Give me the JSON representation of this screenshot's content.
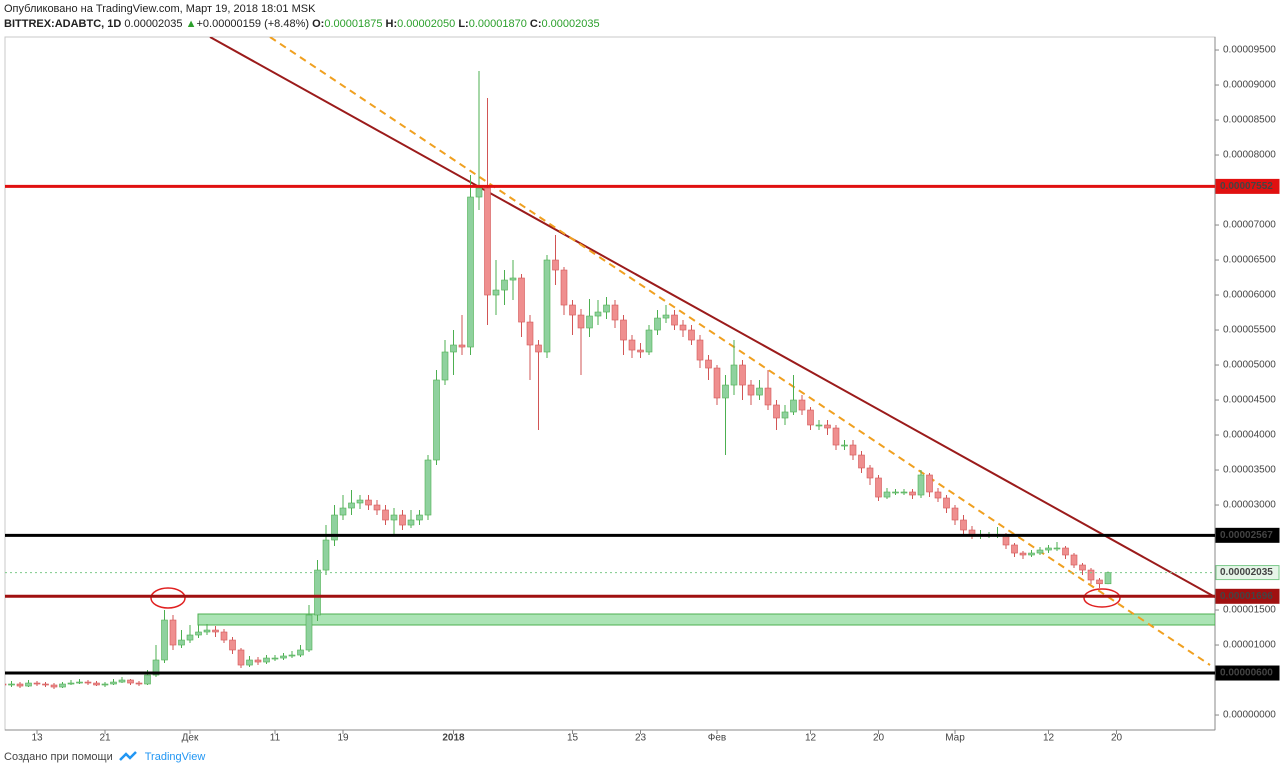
{
  "header": {
    "published": "Опубликовано на TradingView.com, Март 19, 2018 18:01 MSK",
    "symbol": "BITTREX:ADABTC, 1D",
    "last": "0.00002035",
    "arrow": "▲",
    "change": "+0.00000159 (+8.48%)",
    "o_label": "O:",
    "o": "0.00001875",
    "h_label": "H:",
    "h": "0.00002050",
    "l_label": "L:",
    "l": "0.00001870",
    "c_label": "C:",
    "c": "0.00002035"
  },
  "footer": {
    "made_with": "Создано при помощи",
    "brand": "TradingView"
  },
  "chart_data": {
    "type": "candlestick",
    "categories": [
      null,
      null,
      null,
      null,
      "13",
      null,
      null,
      null,
      null,
      null,
      null,
      null,
      "21",
      null,
      null,
      null,
      null,
      null,
      null,
      null,
      null,
      null,
      "Дек",
      null,
      null,
      null,
      null,
      null,
      null,
      null,
      null,
      null,
      "11",
      null,
      null,
      null,
      null,
      null,
      null,
      null,
      "19",
      null,
      null,
      null,
      null,
      null,
      null,
      null,
      null,
      null,
      null,
      null,
      null,
      "2018",
      null,
      null,
      null,
      null,
      null,
      null,
      null,
      null,
      null,
      null,
      null,
      null,
      null,
      "15",
      null,
      null,
      null,
      null,
      null,
      null,
      null,
      "23",
      null,
      null,
      null,
      null,
      null,
      null,
      null,
      null,
      "Фев",
      null,
      null,
      null,
      null,
      null,
      null,
      null,
      null,
      null,
      null,
      "12",
      null,
      null,
      null,
      null,
      null,
      null,
      null,
      "20",
      null,
      null,
      null,
      null,
      null,
      null,
      null,
      null,
      "Мар",
      null,
      null,
      null,
      null,
      null,
      null,
      null,
      null,
      null,
      null,
      "12",
      null,
      null,
      null,
      null,
      null,
      null,
      null,
      "20"
    ],
    "open": [
      4.43e-06,
      4.29e-06,
      4.43e-06,
      4.14e-06,
      4.57e-06,
      4.43e-06,
      4.29e-06,
      4e-06,
      4.43e-06,
      4.57e-06,
      4.71e-06,
      4.57e-06,
      4.29e-06,
      4.43e-06,
      4.71e-06,
      5e-06,
      4.57e-06,
      4.43e-06,
      5.71e-06,
      7.86e-06,
      1.357e-05,
      1e-05,
      1.071e-05,
      1.143e-05,
      1.186e-05,
      1.214e-05,
      1.186e-05,
      1.071e-05,
      9.29e-06,
      7.14e-06,
      7.86e-06,
      7.57e-06,
      8.14e-06,
      8.14e-06,
      8.43e-06,
      8.57e-06,
      9.29e-06,
      1.429e-05,
      2.071e-05,
      2.5e-05,
      2.857e-05,
      2.957e-05,
      3.029e-05,
      3.071e-05,
      3e-05,
      2.929e-05,
      2.786e-05,
      2.857e-05,
      2.714e-05,
      2.786e-05,
      2.857e-05,
      3.643e-05,
      4.786e-05,
      5.186e-05,
      5.286e-05,
      5.257e-05,
      7.4e-05,
      7.529e-05,
      6e-05,
      6.071e-05,
      6.214e-05,
      6.243e-05,
      5.614e-05,
      5.286e-05,
      5.186e-05,
      6.5e-05,
      6.357e-05,
      5.857e-05,
      5.714e-05,
      5.529e-05,
      5.7e-05,
      5.757e-05,
      5.857e-05,
      5.643e-05,
      5.357e-05,
      5.214e-05,
      5.186e-05,
      5.5e-05,
      5.671e-05,
      5.714e-05,
      5.571e-05,
      5.5e-05,
      5.357e-05,
      5.071e-05,
      4.957e-05,
      4.529e-05,
      4.714e-05,
      5e-05,
      4.714e-05,
      4.571e-05,
      4.671e-05,
      4.429e-05,
      4.243e-05,
      4.329e-05,
      4.5e-05,
      4.357e-05,
      4.143e-05,
      4.143e-05,
      4.1e-05,
      3.857e-05,
      3.857e-05,
      3.714e-05,
      3.529e-05,
      3.386e-05,
      3.114e-05,
      3.186e-05,
      3.186e-05,
      3.186e-05,
      3.143e-05,
      3.429e-05,
      3.186e-05,
      3.1e-05,
      2.957e-05,
      2.786e-05,
      2.643e-05,
      2.571e-05,
      2.571e-05,
      2.571e-05,
      2.571e-05,
      2.429e-05,
      2.314e-05,
      2.286e-05,
      2.314e-05,
      2.357e-05,
      2.386e-05,
      2.386e-05,
      2.286e-05,
      2.143e-05,
      2.071e-05,
      1.929e-05,
      1.875e-05,
      null
    ],
    "high": [
      5e-06,
      4.86e-06,
      4.71e-06,
      5e-06,
      4.86e-06,
      4.71e-06,
      4.57e-06,
      4.71e-06,
      5e-06,
      5.14e-06,
      5e-06,
      4.86e-06,
      4.71e-06,
      5.14e-06,
      5.43e-06,
      5.14e-06,
      4.86e-06,
      6.43e-06,
      1e-05,
      1.5e-05,
      1.429e-05,
      1.214e-05,
      1.286e-05,
      1.286e-05,
      1.3e-05,
      1.271e-05,
      1.229e-05,
      1.114e-05,
      9.57e-06,
      8.43e-06,
      8.29e-06,
      8.57e-06,
      8.57e-06,
      8.86e-06,
      9.14e-06,
      1e-05,
      1.571e-05,
      2.214e-05,
      2.714e-05,
      3e-05,
      3.143e-05,
      3.214e-05,
      3.143e-05,
      3.143e-05,
      3.071e-05,
      3e-05,
      2.957e-05,
      2.929e-05,
      2.929e-05,
      2.929e-05,
      3.714e-05,
      4.929e-05,
      5.357e-05,
      5.5e-05,
      5.714e-05,
      7.714e-05,
      9.2e-05,
      8.814e-05,
      6.5e-05,
      6.357e-05,
      6.5e-05,
      6.3e-05,
      5.714e-05,
      5.357e-05,
      6.571e-05,
      6.857e-05,
      6.4e-05,
      5.929e-05,
      5.8e-05,
      5.943e-05,
      5.929e-05,
      5.971e-05,
      5.929e-05,
      5.714e-05,
      5.429e-05,
      5.314e-05,
      5.571e-05,
      5.786e-05,
      5.857e-05,
      5.786e-05,
      5.643e-05,
      5.571e-05,
      5.429e-05,
      5.143e-05,
      5e-05,
      4.857e-05,
      5.357e-05,
      5.071e-05,
      4.786e-05,
      4.786e-05,
      4.929e-05,
      4.5e-05,
      4.429e-05,
      4.857e-05,
      4.571e-05,
      4.4e-05,
      4.214e-05,
      4.214e-05,
      4.143e-05,
      3.929e-05,
      3.929e-05,
      3.771e-05,
      3.571e-05,
      3.429e-05,
      3.243e-05,
      3.229e-05,
      3.229e-05,
      3.229e-05,
      3.5e-05,
      3.457e-05,
      3.243e-05,
      3.143e-05,
      3e-05,
      2.857e-05,
      2.7e-05,
      2.643e-05,
      2.614e-05,
      2.686e-05,
      2.6e-05,
      2.457e-05,
      2.343e-05,
      2.357e-05,
      2.4e-05,
      2.429e-05,
      2.471e-05,
      2.414e-05,
      2.314e-05,
      2.171e-05,
      2.1e-05,
      1.957e-05,
      2.05e-05,
      null
    ],
    "low": [
      4e-06,
      4e-06,
      3.86e-06,
      4e-06,
      4.14e-06,
      4e-06,
      3.71e-06,
      3.86e-06,
      4.29e-06,
      4.43e-06,
      4.29e-06,
      4.14e-06,
      4e-06,
      4.29e-06,
      4.57e-06,
      4.29e-06,
      4.14e-06,
      4.29e-06,
      5.43e-06,
      7.43e-06,
      9.29e-06,
      9.57e-06,
      1.029e-05,
      1.1e-05,
      1.143e-05,
      1.114e-05,
      1.029e-05,
      8.71e-06,
      6.71e-06,
      6.86e-06,
      7.14e-06,
      7.29e-06,
      7.71e-06,
      7.86e-06,
      8.14e-06,
      8.29e-06,
      9e-06,
      1.343e-05,
      2e-05,
      2.414e-05,
      2.786e-05,
      2.857e-05,
      2.943e-05,
      2.929e-05,
      2.857e-05,
      2.714e-05,
      2.571e-05,
      2.643e-05,
      2.671e-05,
      2.714e-05,
      2.786e-05,
      3.571e-05,
      4.714e-05,
      4.857e-05,
      5.143e-05,
      5.143e-05,
      7.214e-05,
      5.571e-05,
      5.714e-05,
      5.857e-05,
      5.929e-05,
      5.4e-05,
      4.786e-05,
      4.071e-05,
      5.1e-05,
      6.143e-05,
      5.714e-05,
      5.429e-05,
      4.857e-05,
      5.4e-05,
      5.571e-05,
      5.657e-05,
      5.529e-05,
      5.143e-05,
      5.1e-05,
      5.1e-05,
      5.143e-05,
      5.429e-05,
      5.6e-05,
      5.5e-05,
      5.4e-05,
      5.286e-05,
      4.957e-05,
      4.786e-05,
      4.429e-05,
      3.714e-05,
      4.571e-05,
      4.5e-05,
      4.429e-05,
      4.5e-05,
      4.357e-05,
      4.071e-05,
      4.143e-05,
      4.286e-05,
      4.286e-05,
      4.071e-05,
      4.071e-05,
      4e-05,
      3.786e-05,
      3.786e-05,
      3.643e-05,
      3.457e-05,
      3.286e-05,
      3.057e-05,
      3.086e-05,
      3.143e-05,
      3.143e-05,
      3.086e-05,
      3.1e-05,
      3.114e-05,
      3.043e-05,
      2.886e-05,
      2.714e-05,
      2.571e-05,
      2.514e-05,
      2.514e-05,
      2.529e-05,
      2.529e-05,
      2.371e-05,
      2.257e-05,
      2.229e-05,
      2.257e-05,
      2.286e-05,
      2.314e-05,
      2.343e-05,
      2.229e-05,
      2.1e-05,
      2e-05,
      1.871e-05,
      1.814e-05,
      1.87e-05,
      null
    ],
    "close": [
      4.29e-06,
      4.43e-06,
      4.14e-06,
      4.57e-06,
      4.43e-06,
      4.29e-06,
      4e-06,
      4.43e-06,
      4.57e-06,
      4.71e-06,
      4.57e-06,
      4.29e-06,
      4.43e-06,
      4.71e-06,
      5e-06,
      4.57e-06,
      4.43e-06,
      5.71e-06,
      7.86e-06,
      1.357e-05,
      1e-05,
      1.071e-05,
      1.143e-05,
      1.186e-05,
      1.214e-05,
      1.186e-05,
      1.071e-05,
      9.29e-06,
      7.14e-06,
      7.86e-06,
      7.57e-06,
      8.14e-06,
      8.14e-06,
      8.43e-06,
      8.57e-06,
      9.29e-06,
      1.429e-05,
      2.071e-05,
      2.5e-05,
      2.857e-05,
      2.957e-05,
      3.029e-05,
      3.071e-05,
      3e-05,
      2.929e-05,
      2.786e-05,
      2.857e-05,
      2.714e-05,
      2.786e-05,
      2.857e-05,
      3.643e-05,
      4.786e-05,
      5.186e-05,
      5.286e-05,
      5.257e-05,
      7.4e-05,
      7.529e-05,
      6e-05,
      6.071e-05,
      6.214e-05,
      6.243e-05,
      5.614e-05,
      5.286e-05,
      5.186e-05,
      6.5e-05,
      6.357e-05,
      5.857e-05,
      5.714e-05,
      5.529e-05,
      5.7e-05,
      5.757e-05,
      5.857e-05,
      5.643e-05,
      5.357e-05,
      5.214e-05,
      5.186e-05,
      5.5e-05,
      5.671e-05,
      5.714e-05,
      5.571e-05,
      5.5e-05,
      5.357e-05,
      5.071e-05,
      4.957e-05,
      4.529e-05,
      4.714e-05,
      5e-05,
      4.714e-05,
      4.571e-05,
      4.671e-05,
      4.429e-05,
      4.243e-05,
      4.329e-05,
      4.5e-05,
      4.357e-05,
      4.143e-05,
      4.143e-05,
      4.1e-05,
      3.857e-05,
      3.857e-05,
      3.714e-05,
      3.529e-05,
      3.386e-05,
      3.114e-05,
      3.186e-05,
      3.186e-05,
      3.186e-05,
      3.143e-05,
      3.429e-05,
      3.186e-05,
      3.1e-05,
      2.957e-05,
      2.786e-05,
      2.643e-05,
      2.571e-05,
      2.571e-05,
      2.571e-05,
      2.571e-05,
      2.429e-05,
      2.314e-05,
      2.286e-05,
      2.314e-05,
      2.357e-05,
      2.386e-05,
      2.386e-05,
      2.286e-05,
      2.143e-05,
      2.071e-05,
      1.929e-05,
      1.875e-05,
      2.035e-05,
      null
    ],
    "up_color": "#8fd19e",
    "down_color": "#ef8f8f",
    "ylim": [
      -2.14e-06,
      9.686e-05
    ],
    "yticks": [
      {
        "value": 0,
        "label": "0.00000000"
      },
      {
        "value": 1e-05,
        "label": "0.00001000"
      },
      {
        "value": 1.5e-05,
        "label": "0.00001500"
      },
      {
        "value": 3e-05,
        "label": "0.00003000"
      },
      {
        "value": 3.5e-05,
        "label": "0.00003500"
      },
      {
        "value": 4e-05,
        "label": "0.00004000"
      },
      {
        "value": 4.5e-05,
        "label": "0.00004500"
      },
      {
        "value": 5e-05,
        "label": "0.00005000"
      },
      {
        "value": 5.5e-05,
        "label": "0.00005500"
      },
      {
        "value": 6e-05,
        "label": "0.00006000"
      },
      {
        "value": 6.5e-05,
        "label": "0.00006500"
      },
      {
        "value": 7e-05,
        "label": "0.00007000"
      },
      {
        "value": 8e-05,
        "label": "0.00008000"
      },
      {
        "value": 8.5e-05,
        "label": "0.00008500"
      },
      {
        "value": 9e-05,
        "label": "0.00009000"
      },
      {
        "value": 9.5e-05,
        "label": "0.00009500"
      }
    ],
    "levels": [
      {
        "value": 7.552e-05,
        "label": "0.00007552",
        "color": "#e01010",
        "line": "solid"
      },
      {
        "value": 2.567e-05,
        "label": "0.00002567",
        "color": "#000000",
        "line": "solid"
      },
      {
        "value": 2.035e-05,
        "label": "0.00002035",
        "color": "#7cc98a",
        "line": "dotted"
      },
      {
        "value": 1.696e-05,
        "label": "0.00001696",
        "color": "#a01010",
        "line": "solid"
      },
      {
        "value": 6e-06,
        "label": "0.00000600",
        "color": "#000000",
        "line": "solid"
      }
    ]
  }
}
